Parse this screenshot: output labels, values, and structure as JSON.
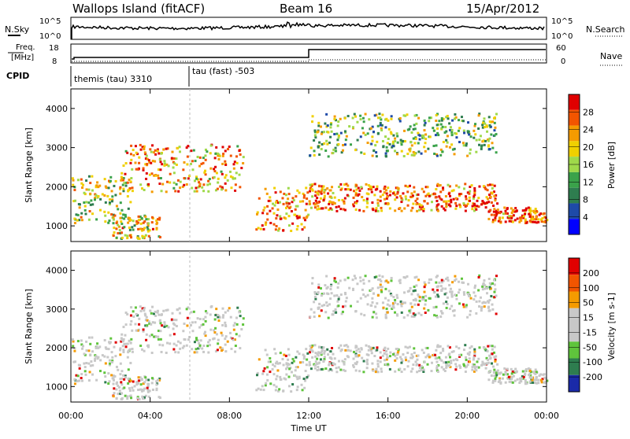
{
  "header": {
    "title": "Wallops Island (fitACF)",
    "beam": "Beam 16",
    "date": "15/Apr/2012"
  },
  "top_panels": {
    "nsky_label": "N.Sky",
    "nsky_ticks": [
      "10^5",
      "10^0"
    ],
    "nsearch_label": "N.Search",
    "nsearch_ticks": [
      "10^5",
      "10^0"
    ],
    "freq_label_1": "Freq.",
    "freq_label_2": "[MHz]",
    "freq_ticks": [
      "18",
      "8"
    ],
    "nave_label": "Nave",
    "nave_ticks": [
      "60",
      "0"
    ],
    "cpid_label": "CPID",
    "cpid_text_1": "themis (tau) 3310",
    "cpid_text_2": "tau (fast) -503"
  },
  "chart_data": [
    {
      "type": "heatmap",
      "panel": "power",
      "ylabel": "Slant Range [km]",
      "y_ticks": [
        "1000",
        "2000",
        "3000",
        "4000"
      ],
      "ylim": [
        600,
        4500
      ],
      "colorbar_label": "Power [dB]",
      "colorbar_ticks": [
        "28",
        "24",
        "20",
        "16",
        "12",
        "8",
        "4"
      ],
      "colors": [
        "#0000ff",
        "#1e4aa8",
        "#2e7d4f",
        "#3aa24a",
        "#9fd94a",
        "#f0d000",
        "#f59b00",
        "#f25500",
        "#e00000"
      ],
      "bands": [
        {
          "t0": 0.0,
          "t1": 3.0,
          "r0": 1100,
          "r1": 2300,
          "level": 0.55
        },
        {
          "t0": 2.0,
          "t1": 4.5,
          "r0": 700,
          "r1": 1300,
          "level": 0.6
        },
        {
          "t0": 2.5,
          "t1": 8.7,
          "r0": 1900,
          "r1": 3100,
          "level": 0.7
        },
        {
          "t0": 9.3,
          "t1": 12.0,
          "r0": 900,
          "r1": 2000,
          "level": 0.75
        },
        {
          "t0": 12.0,
          "t1": 21.5,
          "r0": 1400,
          "r1": 2100,
          "level": 0.8
        },
        {
          "t0": 12.0,
          "t1": 21.5,
          "r0": 2800,
          "r1": 3900,
          "level": 0.45
        },
        {
          "t0": 21.0,
          "t1": 24.0,
          "r0": 1100,
          "r1": 1500,
          "level": 0.85
        }
      ]
    },
    {
      "type": "heatmap",
      "panel": "velocity",
      "ylabel": "Slant Range [km]",
      "y_ticks": [
        "1000",
        "2000",
        "3000",
        "4000"
      ],
      "ylim": [
        600,
        4500
      ],
      "x_ticks": [
        "00:00",
        "04:00",
        "08:00",
        "12:00",
        "16:00",
        "20:00",
        "00:00"
      ],
      "xlabel": "Time UT",
      "colorbar_label": "Velocity [m s-1]",
      "colorbar_ticks": [
        "200",
        "100",
        "50",
        "15",
        "-15",
        "-50",
        "-100",
        "-200"
      ],
      "colors": [
        "#1a2aa8",
        "#2e7d4f",
        "#5fc43c",
        "#c8c8c8",
        "#c8c8c8",
        "#f59b00",
        "#f25500",
        "#e00000"
      ]
    }
  ]
}
